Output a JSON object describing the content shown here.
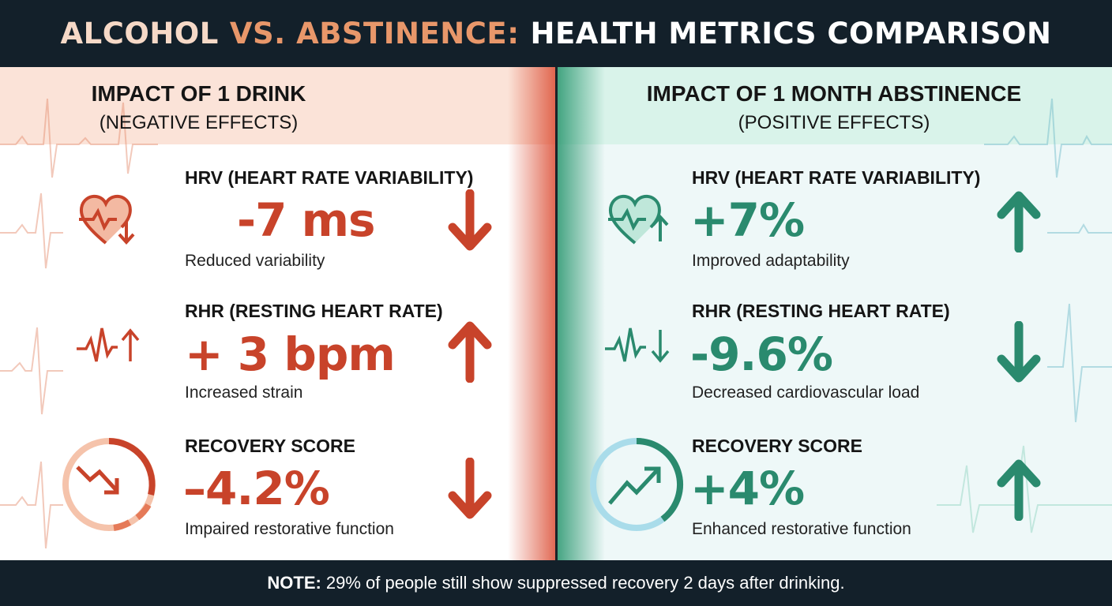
{
  "header": {
    "title_part1": "ALCOHOL",
    "title_part2": "VS. ABSTINENCE:",
    "title_part3": "HEALTH METRICS COMPARISON"
  },
  "colors": {
    "negative": "#c8432a",
    "positive": "#2a8a6e",
    "dark": "#13202a"
  },
  "left": {
    "title": "IMPACT OF 1 DRINK",
    "subtitle": "(NEGATIVE EFFECTS)",
    "metrics": [
      {
        "label": "HRV (HEART RATE VARIABILITY)",
        "value": "-7 ms",
        "description": "Reduced variability",
        "direction": "down",
        "icon": "heart-down-icon"
      },
      {
        "label": "RHR (RESTING HEART RATE)",
        "value": "+ 3 bpm",
        "description": "Increased strain",
        "direction": "up",
        "icon": "pulse-up-icon"
      },
      {
        "label": "RECOVERY SCORE",
        "value": "–4.2%",
        "description": "Impaired restorative function",
        "direction": "down",
        "icon": "recovery-decline-icon"
      }
    ]
  },
  "right": {
    "title": "IMPACT OF 1 MONTH ABSTINENCE",
    "subtitle": "(POSITIVE EFFECTS)",
    "metrics": [
      {
        "label": "HRV (HEART RATE VARIABILITY)",
        "value": "+7%",
        "description": "Improved adaptability",
        "direction": "up",
        "icon": "heart-up-icon"
      },
      {
        "label": "RHR (RESTING HEART RATE)",
        "value": "-9.6%",
        "description": "Decreased cardiovascular load",
        "direction": "down",
        "icon": "pulse-down-icon"
      },
      {
        "label": "RECOVERY SCORE",
        "value": "+4%",
        "description": "Enhanced restorative function",
        "direction": "up",
        "icon": "recovery-rise-icon"
      }
    ]
  },
  "footer": {
    "note_label": "NOTE:",
    "note_text": "29% of people still show suppressed recovery 2 days after drinking."
  }
}
